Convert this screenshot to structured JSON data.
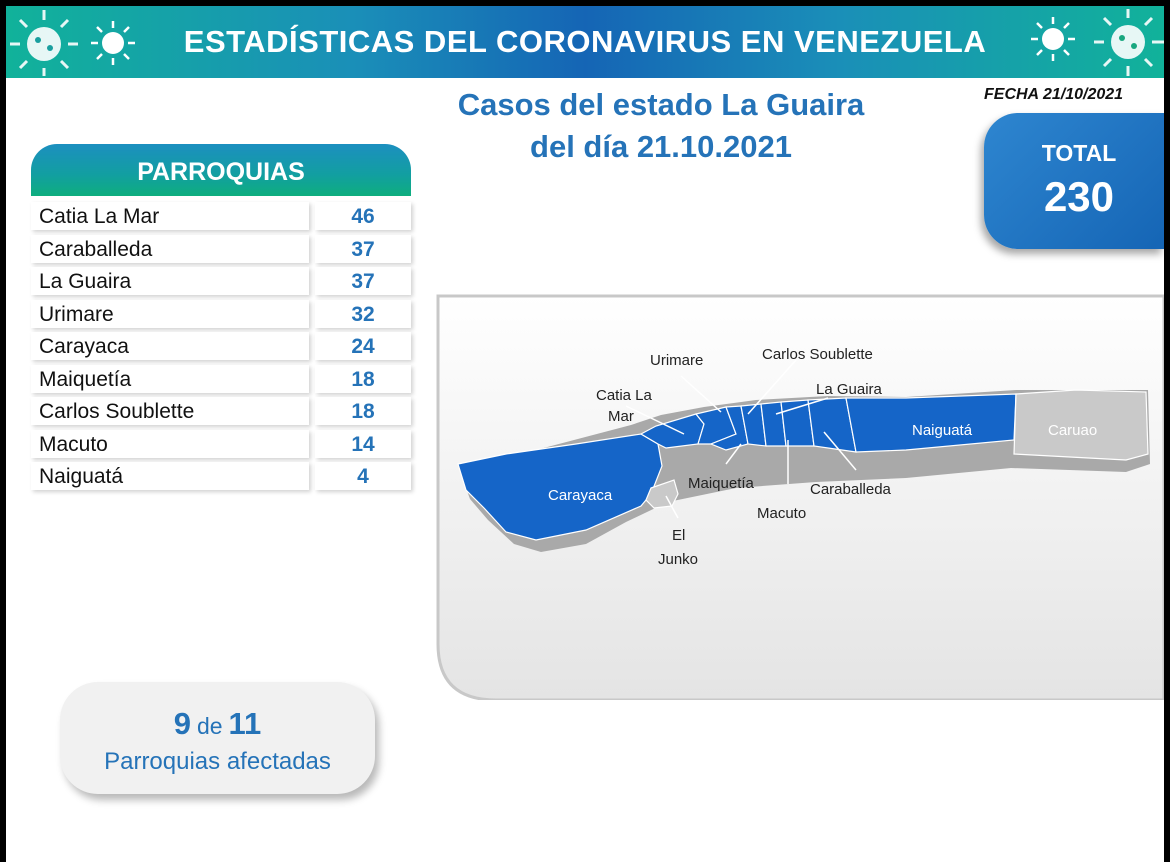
{
  "header": {
    "title": "ESTADÍSTICAS DEL CORONAVIRUS EN VENEZUELA"
  },
  "subtitle": {
    "line1": "Casos del estado La Guaira",
    "line2": "del día 21.10.2021"
  },
  "date_label": "FECHA 21/10/2021",
  "total": {
    "label": "TOTAL",
    "value": "230"
  },
  "parroquias": {
    "header": "PARROQUIAS",
    "rows": [
      {
        "name": "Catia La Mar",
        "value": "46"
      },
      {
        "name": "Caraballeda",
        "value": "37"
      },
      {
        "name": "La Guaira",
        "value": "37"
      },
      {
        "name": "Urimare",
        "value": "32"
      },
      {
        "name": "Carayaca",
        "value": "24"
      },
      {
        "name": "Maiquetía",
        "value": "18"
      },
      {
        "name": "Carlos Soublette",
        "value": "18"
      },
      {
        "name": "Macuto",
        "value": "14"
      },
      {
        "name": "Naiguatá",
        "value": "4"
      }
    ]
  },
  "affected": {
    "count": "9",
    "de": "de",
    "total": "11",
    "label": "Parroquias  afectadas"
  },
  "map": {
    "labels": {
      "urimare": "Urimare",
      "carlos_soublette": "Carlos Soublette",
      "catia_la_mar_1": "Catia La",
      "catia_la_mar_2": "Mar",
      "la_guaira": "La Guaira",
      "naiguata": "Naiguatá",
      "caruao": "Caruao",
      "carayaca": "Carayaca",
      "maiquetia": "Maiquetía",
      "caraballeda": "Caraballeda",
      "macuto": "Macuto",
      "el_junko_1": "El",
      "el_junko_2": "Junko"
    },
    "colors": {
      "affected": "#1565c8",
      "unaffected": "#c9c9c9",
      "shadow": "#a9a9a9"
    }
  },
  "colors": {
    "accent": "#2573b8",
    "header_start": "#11b29a",
    "header_mid": "#1565b5"
  }
}
